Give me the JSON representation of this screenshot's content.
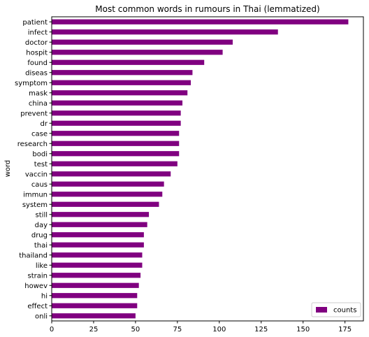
{
  "chart_data": {
    "type": "bar",
    "orientation": "horizontal",
    "title": "Most common words in rumours in Thai (lemmatized)",
    "xlabel": "",
    "ylabel": "word",
    "xlim": [
      0,
      186
    ],
    "xticks": [
      0,
      25,
      50,
      75,
      100,
      125,
      150,
      175
    ],
    "grid": false,
    "legend_position": "bottom-right",
    "bar_color": "#800080",
    "categories": [
      "patient",
      "infect",
      "doctor",
      "hospit",
      "found",
      "diseas",
      "symptom",
      "mask",
      "china",
      "prevent",
      "dr",
      "case",
      "research",
      "bodi",
      "test",
      "vaccin",
      "caus",
      "immun",
      "system",
      "still",
      "day",
      "drug",
      "thai",
      "thailand",
      "like",
      "strain",
      "howev",
      "hi",
      "effect",
      "onli"
    ],
    "series": [
      {
        "name": "counts",
        "values": [
          177,
          135,
          108,
          102,
          91,
          84,
          83,
          81,
          78,
          77,
          77,
          76,
          76,
          76,
          75,
          71,
          67,
          66,
          64,
          58,
          57,
          55,
          55,
          54,
          54,
          53,
          52,
          51,
          51,
          50
        ]
      }
    ]
  }
}
